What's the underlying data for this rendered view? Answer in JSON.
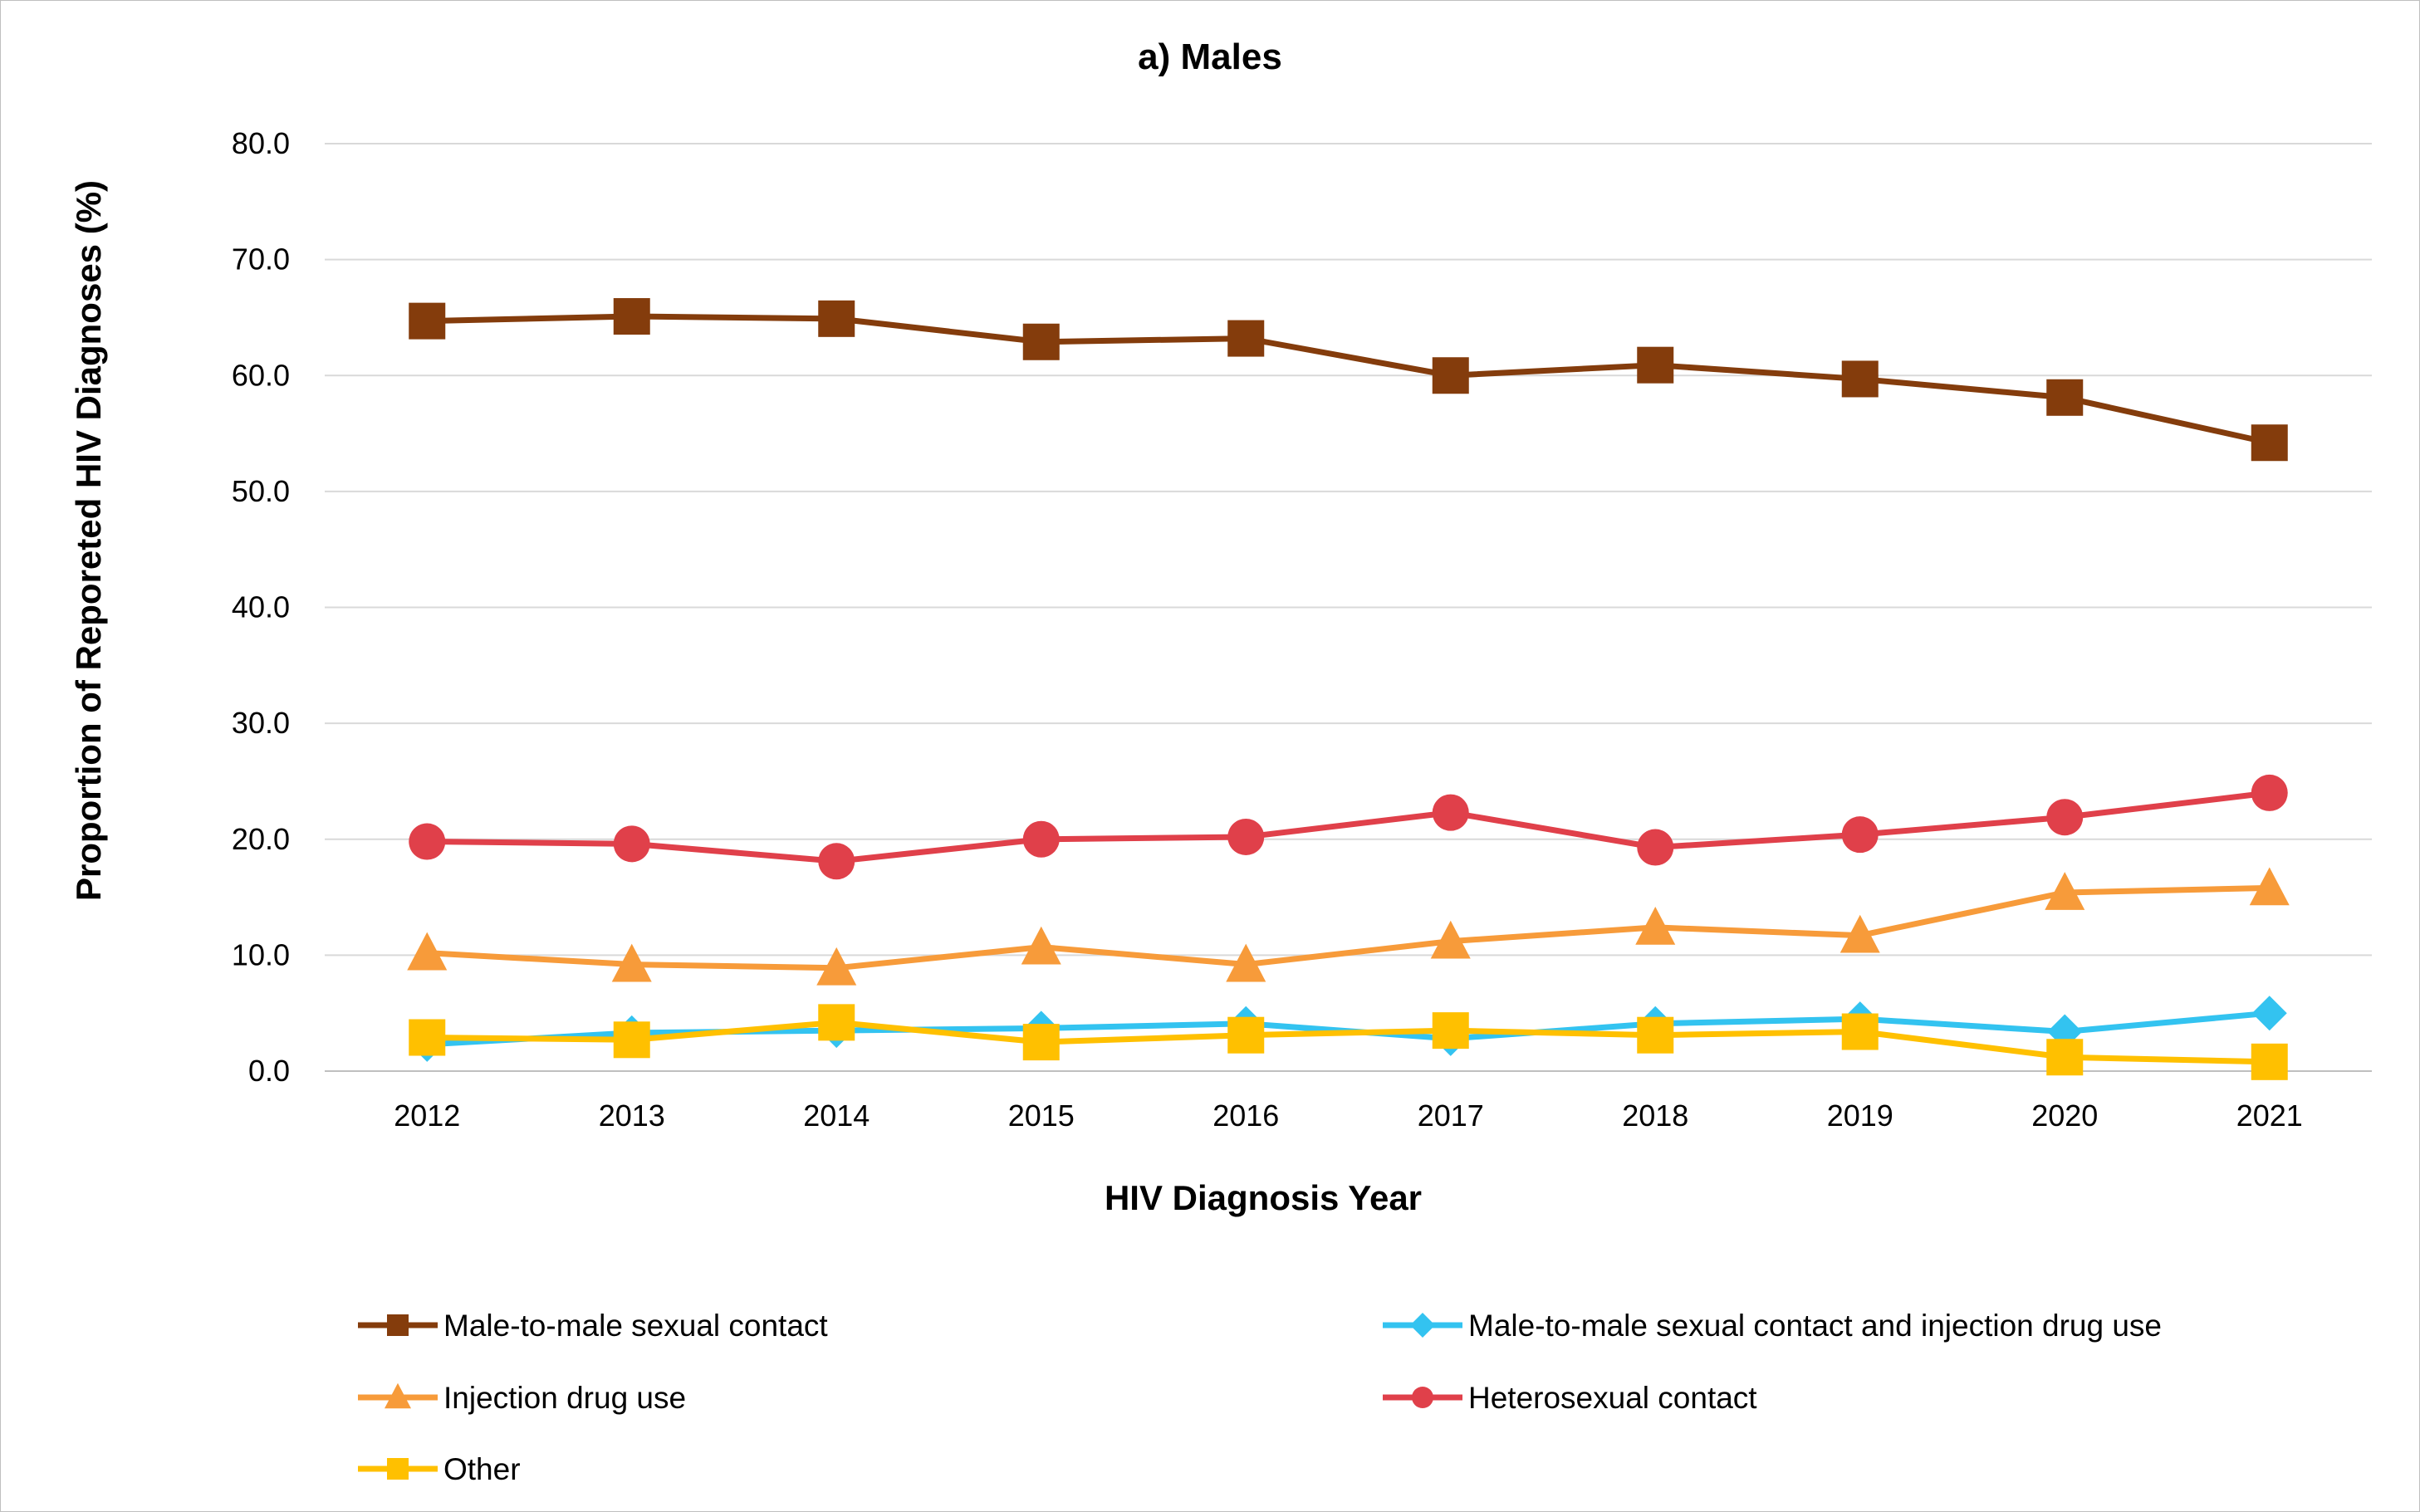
{
  "chart_data": {
    "type": "line",
    "title": "a) Males",
    "xlabel": "HIV Diagnosis Year",
    "ylabel": "Proportion of Reporeted HIV Diagnoses (%)",
    "ylim": [
      0,
      80
    ],
    "y_ticks": [
      "0.0",
      "10.0",
      "20.0",
      "30.0",
      "40.0",
      "50.0",
      "60.0",
      "70.0",
      "80.0"
    ],
    "grid": true,
    "legend_position": "bottom",
    "categories": [
      "2012",
      "2013",
      "2014",
      "2015",
      "2016",
      "2017",
      "2018",
      "2019",
      "2020",
      "2021"
    ],
    "series": [
      {
        "name": "Male-to-male sexual contact",
        "color": "#843c0c",
        "marker": "square",
        "values": [
          64.7,
          65.1,
          64.9,
          62.9,
          63.2,
          60.0,
          60.9,
          59.7,
          58.1,
          54.2
        ]
      },
      {
        "name": "Male-to-male sexual contact and injection drug use",
        "color": "#33c3f0",
        "marker": "diamond",
        "values": [
          2.3,
          3.3,
          3.5,
          3.7,
          4.1,
          2.8,
          4.1,
          4.5,
          3.4,
          5.0
        ]
      },
      {
        "name": "Injection drug use",
        "color": "#f79b3a",
        "marker": "triangle",
        "values": [
          10.2,
          9.2,
          8.9,
          10.7,
          9.2,
          11.2,
          12.4,
          11.7,
          15.4,
          15.8
        ]
      },
      {
        "name": "Heterosexual contact",
        "color": "#e0404a",
        "marker": "circle",
        "values": [
          19.8,
          19.6,
          18.1,
          20.0,
          20.2,
          22.3,
          19.3,
          20.4,
          21.9,
          24.0
        ]
      },
      {
        "name": "Other",
        "color": "#ffc000",
        "marker": "square",
        "values": [
          2.9,
          2.7,
          4.2,
          2.5,
          3.1,
          3.5,
          3.1,
          3.4,
          1.2,
          0.8
        ]
      }
    ]
  }
}
